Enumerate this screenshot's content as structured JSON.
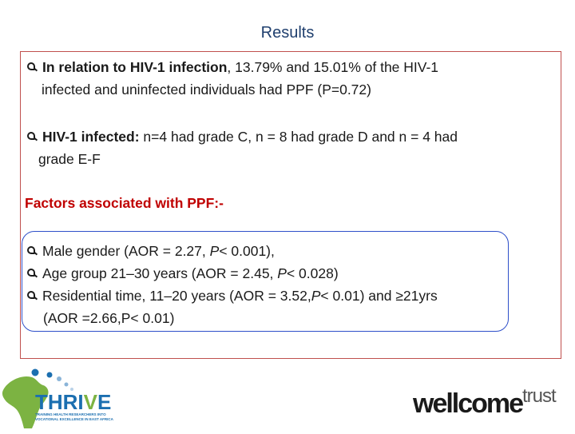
{
  "slide": {
    "title": "Results",
    "point1": {
      "bold_lead": "In relation to HIV-1 infection",
      "text_line1": ", 13.79% and 15.01% of the HIV-1",
      "text_line2": "infected and uninfected individuals had PPF (P=0.72)"
    },
    "point2": {
      "bold_lead": "HIV-1 infected:",
      "text_line1": " n=4 had grade C, n = 8 had grade D and n = 4 had",
      "text_line2": "grade E-F"
    },
    "factors_heading": "Factors associated with PPF:-",
    "factors": [
      {
        "pre": "Male gender (AOR = 2.27, ",
        "p": "P",
        "post": "< 0.001),"
      },
      {
        "pre": "Age group 21–30 years (AOR = 2.45, ",
        "p": "P",
        "post": "< 0.028)"
      },
      {
        "pre": "Residential time, 11–20 years (AOR = 3.52,",
        "p": "P",
        "post": "< 0.01) and ≥21yrs"
      }
    ],
    "factor3_line2": "(AOR =2.66,P< 0.01)"
  },
  "logos": {
    "thrive": {
      "word_a": "THRI",
      "word_v": "V",
      "word_e": "E",
      "tagline": "TRAINING HEALTH RESEARCHERS INTO VOCATIONAL EXCELLENCE IN EAST AFRICA"
    },
    "wellcome": {
      "word1": "wellcome",
      "word2": "trust"
    }
  },
  "colors": {
    "title": "#1f3f6e",
    "frame": "#c0504d",
    "factors_heading": "#c00000",
    "box_border": "#2e4fc9",
    "thrive_blue": "#1b6fb0",
    "thrive_green": "#7cb342"
  }
}
